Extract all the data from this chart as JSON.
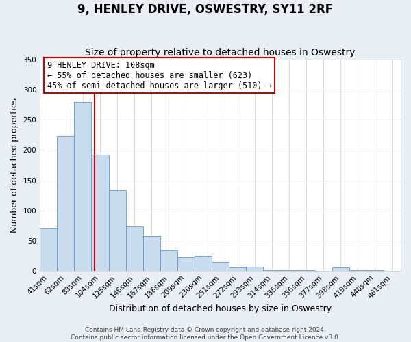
{
  "title": "9, HENLEY DRIVE, OSWESTRY, SY11 2RF",
  "subtitle": "Size of property relative to detached houses in Oswestry",
  "xlabel": "Distribution of detached houses by size in Oswestry",
  "ylabel": "Number of detached properties",
  "bar_color": "#c9ddef",
  "bar_edge_color": "#6699cc",
  "background_color": "#e8eef4",
  "plot_bg_color": "#ffffff",
  "grid_color": "#cccccc",
  "categories": [
    "41sqm",
    "62sqm",
    "83sqm",
    "104sqm",
    "125sqm",
    "146sqm",
    "167sqm",
    "188sqm",
    "209sqm",
    "230sqm",
    "251sqm",
    "272sqm",
    "293sqm",
    "314sqm",
    "335sqm",
    "356sqm",
    "377sqm",
    "398sqm",
    "419sqm",
    "440sqm",
    "461sqm"
  ],
  "values": [
    70,
    223,
    280,
    193,
    134,
    73,
    58,
    34,
    23,
    25,
    15,
    5,
    7,
    1,
    1,
    1,
    0,
    5,
    1,
    1,
    0
  ],
  "ylim": [
    0,
    350
  ],
  "yticks": [
    0,
    50,
    100,
    150,
    200,
    250,
    300,
    350
  ],
  "marker_label": "9 HENLEY DRIVE: 108sqm",
  "annotation_line1": "← 55% of detached houses are smaller (623)",
  "annotation_line2": "45% of semi-detached houses are larger (510) →",
  "vline_color": "#cc0000",
  "box_edge_color": "#cc0000",
  "footer1": "Contains HM Land Registry data © Crown copyright and database right 2024.",
  "footer2": "Contains public sector information licensed under the Open Government Licence v3.0.",
  "title_fontsize": 12,
  "subtitle_fontsize": 10,
  "axis_label_fontsize": 9,
  "tick_fontsize": 7.5,
  "annotation_fontsize": 8.5,
  "footer_fontsize": 6.5
}
